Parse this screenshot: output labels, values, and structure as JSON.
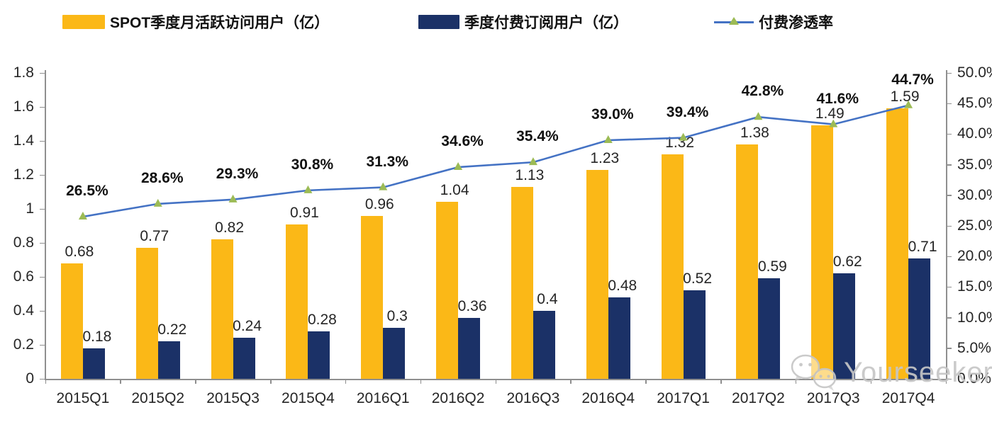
{
  "legend": {
    "items": [
      {
        "label": "SPOT季度月活跃访问用户（亿）",
        "swatch": "bar",
        "color": "#FBB817"
      },
      {
        "label": "季度付费订阅用户（亿）",
        "swatch": "bar",
        "color": "#1B3167"
      },
      {
        "label": "付费渗透率",
        "swatch": "line",
        "color": "#4472C4",
        "marker_color": "#9CBB55"
      }
    ]
  },
  "chart_data": {
    "type": "bar",
    "subtype": "grouped-bars-with-line-on-secondary-axis",
    "title": "",
    "categories": [
      "2015Q1",
      "2015Q2",
      "2015Q3",
      "2015Q4",
      "2016Q1",
      "2016Q2",
      "2016Q3",
      "2016Q4",
      "2017Q1",
      "2017Q2",
      "2017Q3",
      "2017Q4"
    ],
    "series": [
      {
        "name": "SPOT季度月活跃访问用户（亿）",
        "type": "bar",
        "axis": "left",
        "color": "#FBB817",
        "values": [
          0.68,
          0.77,
          0.82,
          0.91,
          0.96,
          1.04,
          1.13,
          1.23,
          1.32,
          1.38,
          1.49,
          1.59
        ],
        "labels": [
          "0.68",
          "0.77",
          "0.82",
          "0.91",
          "0.96",
          "1.04",
          "1.13",
          "1.23",
          "1.32",
          "1.38",
          "1.49",
          "1.59"
        ]
      },
      {
        "name": "季度付费订阅用户（亿）",
        "type": "bar",
        "axis": "left",
        "color": "#1B3167",
        "values": [
          0.18,
          0.22,
          0.24,
          0.28,
          0.3,
          0.36,
          0.4,
          0.48,
          0.52,
          0.59,
          0.62,
          0.71
        ],
        "labels": [
          "0.18",
          "0.22",
          "0.24",
          "0.28",
          "0.3",
          "0.36",
          "0.4",
          "0.48",
          "0.52",
          "0.59",
          "0.62",
          "0.71"
        ]
      },
      {
        "name": "付费渗透率",
        "type": "line",
        "axis": "right",
        "color": "#4472C4",
        "marker": "triangle",
        "marker_color": "#9CBB55",
        "values": [
          26.5,
          28.6,
          29.3,
          30.8,
          31.3,
          34.6,
          35.4,
          39.0,
          39.4,
          42.8,
          41.6,
          44.7
        ],
        "labels": [
          "26.5%",
          "28.6%",
          "29.3%",
          "30.8%",
          "31.3%",
          "34.6%",
          "35.4%",
          "39.0%",
          "39.4%",
          "42.8%",
          "41.6%",
          "44.7%"
        ]
      }
    ],
    "left_axis": {
      "min": 0,
      "max": 1.8,
      "tick_values": [
        0,
        0.2,
        0.4,
        0.6,
        0.8,
        1,
        1.2,
        1.4,
        1.6,
        1.8
      ],
      "ticks": [
        "0",
        "0.2",
        "0.4",
        "0.6",
        "0.8",
        "1",
        "1.2",
        "1.4",
        "1.6",
        "1.8"
      ]
    },
    "right_axis": {
      "min": 0,
      "max": 50,
      "tick_values": [
        0,
        5,
        10,
        15,
        20,
        25,
        30,
        35,
        40,
        45,
        50
      ],
      "ticks": [
        "0.0%",
        "5.0%",
        "10.0%",
        "15.0%",
        "20.0%",
        "25.0%",
        "30.0%",
        "35.0%",
        "40.0%",
        "45.0%",
        "50.0%"
      ]
    },
    "grid": false,
    "legend_position": "top"
  },
  "watermark": {
    "text": "Yourseeker"
  }
}
